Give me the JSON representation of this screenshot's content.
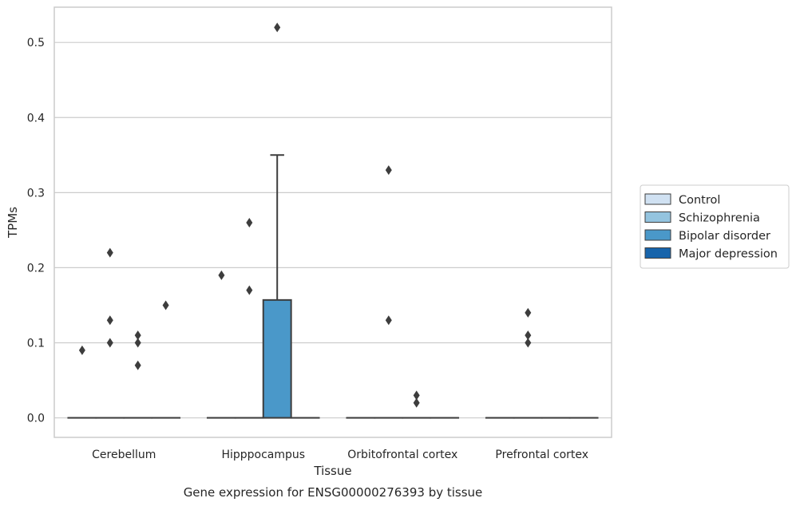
{
  "caption": "Gene expression for ENSG00000276393 by tissue",
  "chart_data": {
    "type": "box",
    "xlabel": "Tissue",
    "ylabel": "TPMs",
    "ylim": [
      -0.026,
      0.547
    ],
    "yticks": [
      0.0,
      0.1,
      0.2,
      0.3,
      0.4,
      0.5
    ],
    "ytick_labels": [
      "0.0",
      "0.1",
      "0.2",
      "0.3",
      "0.4",
      "0.5"
    ],
    "grid": "horizontal",
    "legend_position": "right",
    "categories": [
      "Cerebellum",
      "Hipppocampus",
      "Orbitofrontal cortex",
      "Prefrontal cortex"
    ],
    "series": [
      {
        "name": "Control",
        "color": "#d0e1f2",
        "boxes": [
          {
            "category": "Cerebellum",
            "q1": 0,
            "median": 0,
            "q3": 0,
            "whisker_low": 0,
            "whisker_high": 0,
            "outliers": [
              0.09
            ]
          },
          {
            "category": "Hipppocampus",
            "q1": 0,
            "median": 0,
            "q3": 0,
            "whisker_low": 0,
            "whisker_high": 0,
            "outliers": [
              0.19
            ]
          },
          {
            "category": "Orbitofrontal cortex",
            "q1": 0,
            "median": 0,
            "q3": 0,
            "whisker_low": 0,
            "whisker_high": 0,
            "outliers": []
          },
          {
            "category": "Prefrontal cortex",
            "q1": 0,
            "median": 0,
            "q3": 0,
            "whisker_low": 0,
            "whisker_high": 0,
            "outliers": []
          }
        ]
      },
      {
        "name": "Schizophrenia",
        "color": "#94c4df",
        "boxes": [
          {
            "category": "Cerebellum",
            "q1": 0,
            "median": 0,
            "q3": 0,
            "whisker_low": 0,
            "whisker_high": 0,
            "outliers": [
              0.22,
              0.13,
              0.1
            ]
          },
          {
            "category": "Hipppocampus",
            "q1": 0,
            "median": 0,
            "q3": 0,
            "whisker_low": 0,
            "whisker_high": 0,
            "outliers": [
              0.26,
              0.17
            ]
          },
          {
            "category": "Orbitofrontal cortex",
            "q1": 0,
            "median": 0,
            "q3": 0,
            "whisker_low": 0,
            "whisker_high": 0,
            "outliers": [
              0.33,
              0.13
            ]
          },
          {
            "category": "Prefrontal cortex",
            "q1": 0,
            "median": 0,
            "q3": 0,
            "whisker_low": 0,
            "whisker_high": 0,
            "outliers": [
              0.14,
              0.11,
              0.1
            ]
          }
        ]
      },
      {
        "name": "Bipolar disorder",
        "color": "#4a98c9",
        "boxes": [
          {
            "category": "Cerebellum",
            "q1": 0,
            "median": 0,
            "q3": 0,
            "whisker_low": 0,
            "whisker_high": 0,
            "outliers": [
              0.11,
              0.1,
              0.07
            ]
          },
          {
            "category": "Hipppocampus",
            "q1": 0,
            "median": 0,
            "q3": 0.157,
            "whisker_low": 0,
            "whisker_high": 0.35,
            "outliers": [
              0.52
            ]
          },
          {
            "category": "Orbitofrontal cortex",
            "q1": 0,
            "median": 0,
            "q3": 0,
            "whisker_low": 0,
            "whisker_high": 0,
            "outliers": [
              0.03,
              0.02
            ]
          },
          {
            "category": "Prefrontal cortex",
            "q1": 0,
            "median": 0,
            "q3": 0,
            "whisker_low": 0,
            "whisker_high": 0,
            "outliers": []
          }
        ]
      },
      {
        "name": "Major depression",
        "color": "#1764ab",
        "boxes": [
          {
            "category": "Cerebellum",
            "q1": 0,
            "median": 0,
            "q3": 0,
            "whisker_low": 0,
            "whisker_high": 0,
            "outliers": [
              0.15
            ]
          },
          {
            "category": "Hipppocampus",
            "q1": 0,
            "median": 0,
            "q3": 0,
            "whisker_low": 0,
            "whisker_high": 0,
            "outliers": []
          },
          {
            "category": "Orbitofrontal cortex",
            "q1": 0,
            "median": 0,
            "q3": 0,
            "whisker_low": 0,
            "whisker_high": 0,
            "outliers": []
          },
          {
            "category": "Prefrontal cortex",
            "q1": 0,
            "median": 0,
            "q3": 0,
            "whisker_low": 0,
            "whisker_high": 0,
            "outliers": []
          }
        ]
      }
    ]
  }
}
